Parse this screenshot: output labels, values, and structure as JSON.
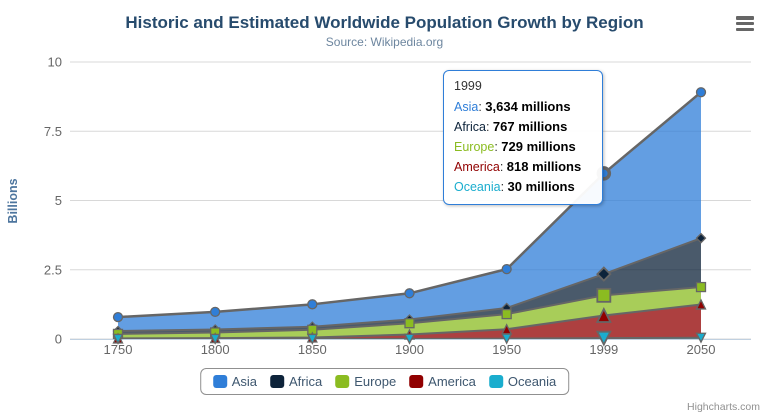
{
  "chart": {
    "title": "Historic and Estimated Worldwide Population Growth by Region",
    "subtitle": "Source: Wikipedia.org",
    "y_axis_title": "Billions",
    "credit": "Highcharts.com"
  },
  "chart_data": {
    "type": "area",
    "stacking": "normal",
    "title": "Historic and Estimated Worldwide Population Growth by Region",
    "subtitle": "Source: Wikipedia.org",
    "categories": [
      "1750",
      "1800",
      "1850",
      "1900",
      "1950",
      "1999",
      "2050"
    ],
    "unit": "millions",
    "ylabel": "Billions",
    "ylim": [
      0,
      10
    ],
    "y_ticks": [
      "0",
      "2.5",
      "5",
      "7.5",
      "10"
    ],
    "grid": true,
    "legend_position": "bottom",
    "hover_index": 5,
    "series": [
      {
        "name": "Asia",
        "color": "#2f7ed8",
        "marker": "circle",
        "values": [
          502,
          635,
          809,
          947,
          1402,
          3634,
          5268
        ]
      },
      {
        "name": "Africa",
        "color": "#0d233a",
        "marker": "diamond",
        "values": [
          106,
          107,
          111,
          133,
          221,
          767,
          1766
        ]
      },
      {
        "name": "Europe",
        "color": "#8bbc21",
        "marker": "square",
        "values": [
          163,
          203,
          276,
          408,
          547,
          729,
          628
        ]
      },
      {
        "name": "America",
        "color": "#910000",
        "marker": "triangle",
        "values": [
          18,
          31,
          54,
          156,
          339,
          818,
          1201
        ]
      },
      {
        "name": "Oceania",
        "color": "#1aadce",
        "marker": "triangle-down",
        "values": [
          2,
          2,
          2,
          6,
          13,
          30,
          46
        ]
      }
    ]
  },
  "tooltip": {
    "header": "1999",
    "rows": [
      {
        "name": "Asia",
        "color": "#2f7ed8",
        "value": "3,634 millions"
      },
      {
        "name": "Africa",
        "color": "#0d233a",
        "value": "767 millions"
      },
      {
        "name": "Europe",
        "color": "#8bbc21",
        "value": "729 millions"
      },
      {
        "name": "America",
        "color": "#910000",
        "value": "818 millions"
      },
      {
        "name": "Oceania",
        "color": "#1aadce",
        "value": "30 millions"
      }
    ]
  },
  "legend": {
    "items": [
      {
        "label": "Asia",
        "color": "#2f7ed8"
      },
      {
        "label": "Africa",
        "color": "#0d233a"
      },
      {
        "label": "Europe",
        "color": "#8bbc21"
      },
      {
        "label": "America",
        "color": "#910000"
      },
      {
        "label": "Oceania",
        "color": "#1aadce"
      }
    ]
  },
  "colors": {
    "title_text": "#274b6d",
    "subtitle_text": "#6d869f",
    "axis_label": "#666666",
    "grid_line": "#d8d8d8",
    "x_axis_line": "#c0d0e0",
    "series_outline": "#666666",
    "legend_border": "#909090",
    "tooltip_border": "#2f7ed8"
  }
}
